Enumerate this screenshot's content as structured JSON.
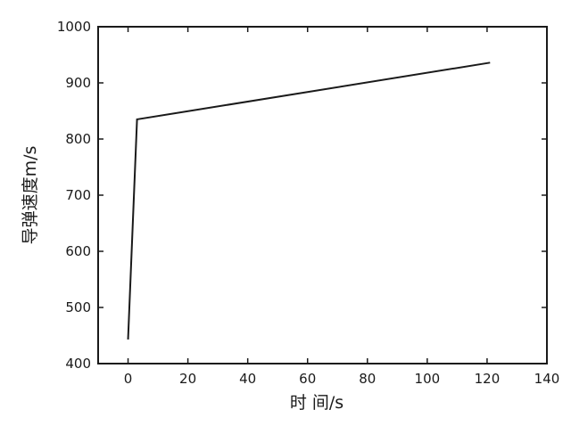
{
  "chart_data": {
    "type": "line",
    "title": "",
    "xlabel": "时 间/s",
    "ylabel": "导弹速度m/s",
    "xlim": [
      -10,
      140
    ],
    "ylim": [
      400,
      1000
    ],
    "x_ticks": [
      0,
      20,
      40,
      60,
      80,
      100,
      120,
      140
    ],
    "y_ticks": [
      400,
      500,
      600,
      700,
      800,
      900,
      1000
    ],
    "grid": false,
    "legend": "none",
    "line_color": "#1a1a1a",
    "series": [
      {
        "x": [
          0,
          3,
          121
        ],
        "y": [
          443,
          835,
          936
        ]
      }
    ]
  }
}
